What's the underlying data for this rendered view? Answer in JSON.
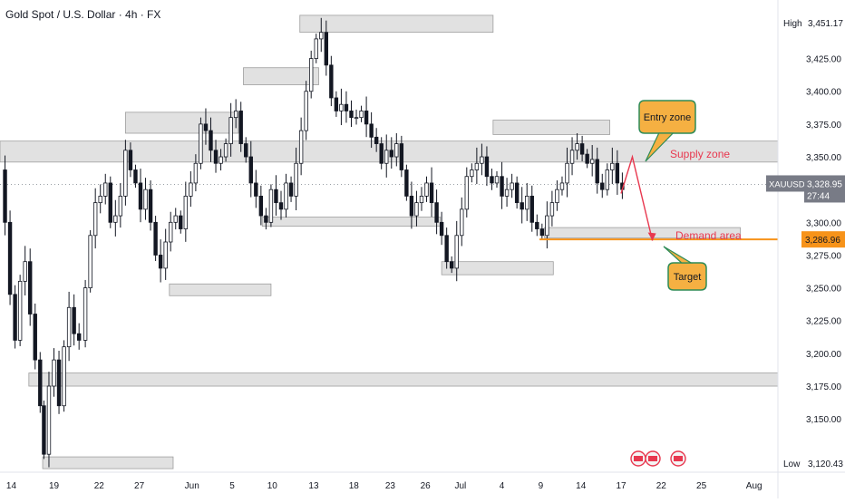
{
  "header": {
    "title": "Gold Spot / U.S. Dollar · 4h · FX"
  },
  "colors": {
    "up": "#131722",
    "down": "#131722",
    "zone_fill": "#d9d9d9",
    "zone_stroke": "#9e9e9e",
    "callout_fill": "#f5b042",
    "callout_stroke": "#2e8b57",
    "annotation_red": "#e8384f",
    "price_line": "#f7931a",
    "current_tag": "#787b86",
    "ext_tag": "#f7931a"
  },
  "chart_data": {
    "type": "candlestick",
    "title": "Gold Spot / U.S. Dollar · 4h · FX",
    "symbol": "XAUUSD",
    "ylim": [
      3110,
      3460
    ],
    "y_ticks": [
      3150,
      3175,
      3200,
      3225,
      3250,
      3275,
      3300,
      3325,
      3350,
      3375,
      3400,
      3425
    ],
    "y_tick_labels": [
      "3,150.00",
      "3,175.00",
      "3,200.00",
      "3,225.00",
      "3,250.00",
      "3,275.00",
      "3,300.00",
      "3,325.00",
      "3,350.00",
      "3,375.00",
      "3,400.00",
      "3,425.00"
    ],
    "x_ticks": [
      {
        "label": "14",
        "x": 0.9
      },
      {
        "label": "19",
        "x": 4.3
      },
      {
        "label": "22",
        "x": 7.9
      },
      {
        "label": "27",
        "x": 11.1
      },
      {
        "label": "Jun",
        "x": 15.3
      },
      {
        "label": "5",
        "x": 18.5
      },
      {
        "label": "10",
        "x": 21.7
      },
      {
        "label": "13",
        "x": 25.0
      },
      {
        "label": "18",
        "x": 28.2
      },
      {
        "label": "23",
        "x": 31.1
      },
      {
        "label": "26",
        "x": 33.9
      },
      {
        "label": "Jul",
        "x": 36.7
      },
      {
        "label": "4",
        "x": 40.0
      },
      {
        "label": "9",
        "x": 43.1
      },
      {
        "label": "14",
        "x": 46.3
      },
      {
        "label": "17",
        "x": 49.5
      },
      {
        "label": "22",
        "x": 52.7
      },
      {
        "label": "25",
        "x": 55.9
      },
      {
        "label": "Aug",
        "x": 60.1
      }
    ],
    "xlim": [
      0,
      62
    ],
    "high": {
      "label": "High",
      "value": 3451.17,
      "text": "3,451.17"
    },
    "low": {
      "label": "Low",
      "value": 3120.43,
      "text": "3,120.43"
    },
    "current": {
      "value": 3328.95,
      "text": "3,328.95",
      "countdown": "27:44",
      "symbol": "XAUUSD"
    },
    "target_line": {
      "value": 3286.96,
      "text": "3,286.96",
      "x_start": 43.0
    },
    "price_path": [
      [
        0.0,
        3340
      ],
      [
        0.4,
        3300
      ],
      [
        0.8,
        3245
      ],
      [
        1.2,
        3210
      ],
      [
        1.6,
        3255
      ],
      [
        2.0,
        3270
      ],
      [
        2.4,
        3230
      ],
      [
        2.8,
        3195
      ],
      [
        3.2,
        3160
      ],
      [
        3.5,
        3123
      ],
      [
        3.9,
        3175
      ],
      [
        4.3,
        3195
      ],
      [
        4.7,
        3160
      ],
      [
        5.1,
        3205
      ],
      [
        5.5,
        3235
      ],
      [
        5.9,
        3215
      ],
      [
        6.3,
        3210
      ],
      [
        6.8,
        3250
      ],
      [
        7.2,
        3290
      ],
      [
        7.6,
        3315
      ],
      [
        8.0,
        3320
      ],
      [
        8.4,
        3330
      ],
      [
        8.8,
        3300
      ],
      [
        9.2,
        3305
      ],
      [
        9.6,
        3320
      ],
      [
        10.0,
        3355
      ],
      [
        10.4,
        3340
      ],
      [
        10.8,
        3330
      ],
      [
        11.2,
        3310
      ],
      [
        11.6,
        3325
      ],
      [
        12.0,
        3300
      ],
      [
        12.4,
        3275
      ],
      [
        12.8,
        3265
      ],
      [
        13.2,
        3285
      ],
      [
        13.6,
        3300
      ],
      [
        14.0,
        3305
      ],
      [
        14.4,
        3295
      ],
      [
        14.8,
        3320
      ],
      [
        15.2,
        3330
      ],
      [
        15.6,
        3345
      ],
      [
        16.0,
        3375
      ],
      [
        16.4,
        3370
      ],
      [
        16.8,
        3355
      ],
      [
        17.2,
        3345
      ],
      [
        17.6,
        3350
      ],
      [
        18.0,
        3360
      ],
      [
        18.4,
        3380
      ],
      [
        18.8,
        3385
      ],
      [
        19.2,
        3360
      ],
      [
        19.6,
        3350
      ],
      [
        20.0,
        3330
      ],
      [
        20.4,
        3320
      ],
      [
        20.8,
        3305
      ],
      [
        21.2,
        3300
      ],
      [
        21.6,
        3325
      ],
      [
        22.0,
        3315
      ],
      [
        22.4,
        3310
      ],
      [
        22.8,
        3330
      ],
      [
        23.2,
        3320
      ],
      [
        23.6,
        3345
      ],
      [
        24.0,
        3370
      ],
      [
        24.4,
        3400
      ],
      [
        24.8,
        3425
      ],
      [
        25.2,
        3440
      ],
      [
        25.6,
        3445
      ],
      [
        26.0,
        3420
      ],
      [
        26.4,
        3395
      ],
      [
        26.8,
        3385
      ],
      [
        27.2,
        3390
      ],
      [
        27.6,
        3385
      ],
      [
        28.0,
        3380
      ],
      [
        28.4,
        3380
      ],
      [
        28.8,
        3385
      ],
      [
        29.2,
        3375
      ],
      [
        29.6,
        3365
      ],
      [
        30.0,
        3360
      ],
      [
        30.4,
        3345
      ],
      [
        30.8,
        3355
      ],
      [
        31.2,
        3350
      ],
      [
        31.6,
        3360
      ],
      [
        32.0,
        3340
      ],
      [
        32.4,
        3320
      ],
      [
        32.8,
        3305
      ],
      [
        33.2,
        3315
      ],
      [
        33.6,
        3320
      ],
      [
        34.0,
        3330
      ],
      [
        34.4,
        3315
      ],
      [
        34.8,
        3300
      ],
      [
        35.2,
        3290
      ],
      [
        35.6,
        3270
      ],
      [
        36.0,
        3265
      ],
      [
        36.4,
        3290
      ],
      [
        36.8,
        3310
      ],
      [
        37.2,
        3335
      ],
      [
        37.6,
        3340
      ],
      [
        38.0,
        3345
      ],
      [
        38.4,
        3350
      ],
      [
        38.8,
        3335
      ],
      [
        39.2,
        3330
      ],
      [
        39.6,
        3335
      ],
      [
        40.0,
        3320
      ],
      [
        40.4,
        3325
      ],
      [
        40.8,
        3330
      ],
      [
        41.2,
        3315
      ],
      [
        41.6,
        3310
      ],
      [
        42.0,
        3320
      ],
      [
        42.4,
        3300
      ],
      [
        42.8,
        3295
      ],
      [
        43.2,
        3290
      ],
      [
        43.6,
        3305
      ],
      [
        44.0,
        3315
      ],
      [
        44.4,
        3325
      ],
      [
        44.8,
        3330
      ],
      [
        45.2,
        3345
      ],
      [
        45.6,
        3355
      ],
      [
        46.0,
        3360
      ],
      [
        46.4,
        3352
      ],
      [
        46.8,
        3345
      ],
      [
        47.2,
        3348
      ],
      [
        47.6,
        3330
      ],
      [
        48.0,
        3325
      ],
      [
        48.4,
        3340
      ],
      [
        48.8,
        3345
      ],
      [
        49.2,
        3330
      ],
      [
        49.6,
        3325
      ]
    ],
    "zones": [
      {
        "x1": 23.9,
        "x2": 39.3,
        "y1": 3445,
        "y2": 3458
      },
      {
        "x1": 19.4,
        "x2": 25.4,
        "y1": 3405,
        "y2": 3418
      },
      {
        "x1": 10.0,
        "x2": 19.0,
        "y1": 3368,
        "y2": 3384
      },
      {
        "x1": 39.3,
        "x2": 48.6,
        "y1": 3367,
        "y2": 3378
      },
      {
        "x1": 0.0,
        "x2": 62.0,
        "y1": 3346,
        "y2": 3362
      },
      {
        "x1": 20.9,
        "x2": 35.1,
        "y1": 3297,
        "y2": 3304
      },
      {
        "x1": 43.4,
        "x2": 59.0,
        "y1": 3288,
        "y2": 3296
      },
      {
        "x1": 35.2,
        "x2": 44.1,
        "y1": 3260,
        "y2": 3270
      },
      {
        "x1": 13.5,
        "x2": 21.6,
        "y1": 3244,
        "y2": 3253
      },
      {
        "x1": 2.3,
        "x2": 62.0,
        "y1": 3175,
        "y2": 3185
      },
      {
        "x1": 3.4,
        "x2": 13.8,
        "y1": 3112,
        "y2": 3121
      }
    ],
    "annotations": {
      "entry_zone": "Entry zone",
      "supply_zone": "Supply zone",
      "demand_area": "Demand area",
      "target": "Target"
    },
    "arrow_path": [
      [
        49.5,
        3322
      ],
      [
        50.4,
        3350
      ],
      [
        52.0,
        3286
      ]
    ]
  }
}
